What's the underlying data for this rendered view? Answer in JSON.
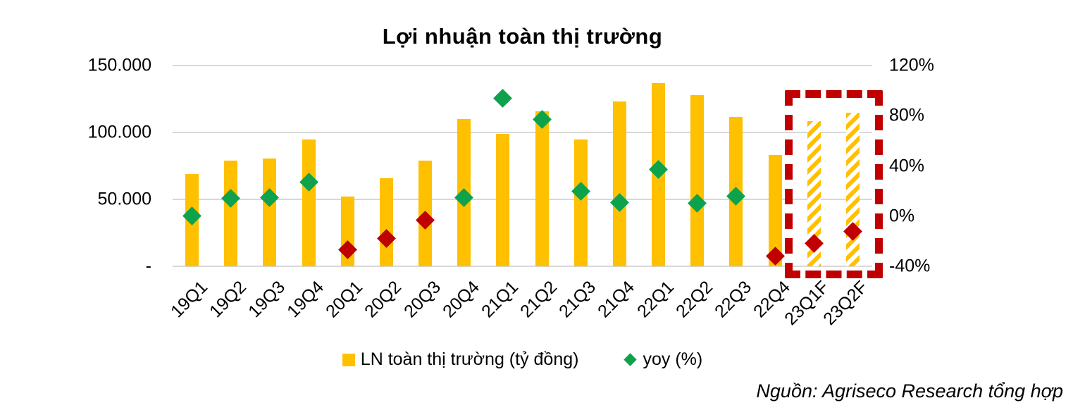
{
  "title": "Lợi nhuận toàn thị trường",
  "source_note": "Nguồn: Agriseco Research tổng hợp",
  "legend": {
    "bar_label": "LN toàn thị trường (tỷ đồng)",
    "yoy_label": "yoy (%)"
  },
  "colors": {
    "bar": "#FFC000",
    "yoy_positive": "#0FA24C",
    "yoy_negative": "#C00000",
    "forecast_box": "#C00000",
    "gridline": "#D8D8D8"
  },
  "chart_data": {
    "type": "combo-bar-scatter",
    "title": "Lợi nhuận toàn thị trường",
    "categories": [
      "19Q1",
      "19Q2",
      "19Q3",
      "19Q4",
      "20Q1",
      "20Q2",
      "20Q3",
      "20Q4",
      "21Q1",
      "21Q2",
      "21Q3",
      "21Q4",
      "22Q1",
      "22Q2",
      "22Q3",
      "22Q4",
      "23Q1F",
      "23Q2F"
    ],
    "series": [
      {
        "name": "LN toàn thị trường (tỷ đồng)",
        "type": "bar",
        "axis": "left",
        "values": [
          69000,
          79000,
          80500,
          95000,
          52000,
          66000,
          79000,
          110000,
          99000,
          116000,
          95000,
          123000,
          137000,
          128000,
          111500,
          83000,
          108500,
          114500
        ],
        "hatched_from_index": 16
      },
      {
        "name": "yoy (%)",
        "type": "scatter",
        "marker": "diamond",
        "axis": "right",
        "values": [
          0,
          14,
          15,
          27,
          -27,
          -18,
          -3,
          15,
          94,
          77,
          20,
          11,
          37,
          10,
          16,
          -32,
          -22,
          -12
        ]
      }
    ],
    "left_axis": {
      "min": 0,
      "max": 150000,
      "tick_values": [
        150000,
        100000,
        50000,
        0
      ],
      "tick_labels": [
        "150.000",
        "100.000",
        "50.000",
        "-"
      ]
    },
    "right_axis": {
      "min": -40,
      "max": 120,
      "tick_values": [
        120,
        80,
        40,
        0,
        -40
      ],
      "tick_labels": [
        "120%",
        "80%",
        "40%",
        "0%",
        "-40%"
      ]
    },
    "grid": true,
    "legend_position": "bottom",
    "annotations": {
      "forecast_box_categories": [
        "23Q1F",
        "23Q2F"
      ]
    }
  }
}
